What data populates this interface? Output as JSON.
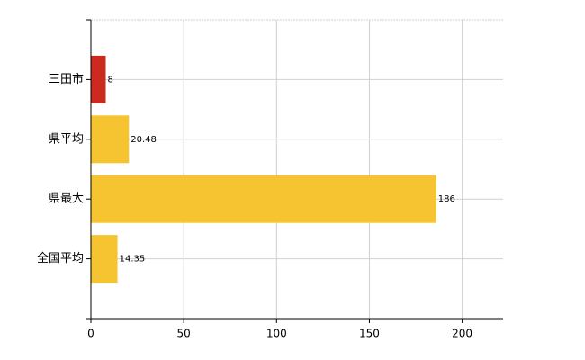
{
  "chart_data": {
    "type": "barh",
    "categories": [
      "三田市",
      "県平均",
      "県最大",
      "全国平均"
    ],
    "values": [
      8,
      20.48,
      186,
      14.35
    ],
    "colors": [
      "#cc2a1e",
      "#f7c431",
      "#f7c431",
      "#f7c431"
    ],
    "xlim": [
      0,
      222
    ],
    "xticks": [
      0,
      50,
      100,
      150,
      200
    ],
    "grid": true
  }
}
